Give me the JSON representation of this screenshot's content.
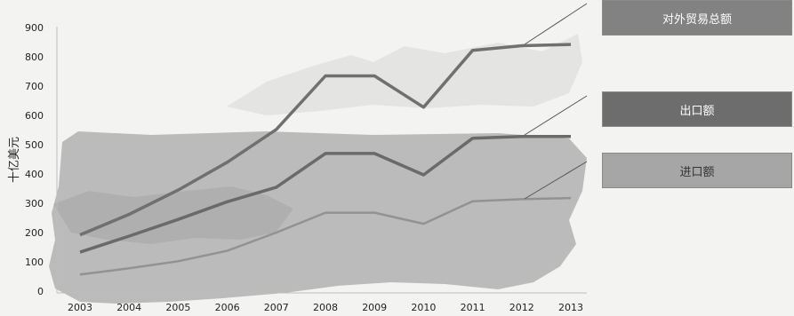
{
  "chart_data": {
    "type": "line",
    "categories": [
      "2003",
      "2004",
      "2005",
      "2006",
      "2007",
      "2008",
      "2009",
      "2010",
      "2011",
      "2012",
      "2013"
    ],
    "ylabel": "十亿美元",
    "ylim": [
      0,
      900
    ],
    "yticks": [
      0,
      100,
      200,
      300,
      400,
      500,
      600,
      700,
      800,
      900
    ],
    "grid": false,
    "legend_position": "right",
    "series": [
      {
        "name": "对外贸易总额",
        "color": "#707070",
        "values": [
          192,
          262,
          345,
          440,
          552,
          735,
          735,
          628,
          822,
          838,
          842
        ]
      },
      {
        "name": "出口额",
        "color": "#6a6a6a",
        "values": [
          133,
          188,
          245,
          305,
          355,
          470,
          470,
          397,
          522,
          528,
          528
        ]
      },
      {
        "name": "进口额",
        "color": "#929292",
        "values": [
          57,
          78,
          102,
          138,
          200,
          268,
          268,
          230,
          307,
          314,
          318
        ]
      }
    ]
  },
  "legend": [
    {
      "label": "对外贸易总额",
      "bg": "#828282",
      "color": "#ffffff"
    },
    {
      "label": "出口额",
      "bg": "#6d6d6d",
      "color": "#ffffff"
    },
    {
      "label": "进口额",
      "bg": "#a6a6a6",
      "color": "#333333"
    }
  ]
}
